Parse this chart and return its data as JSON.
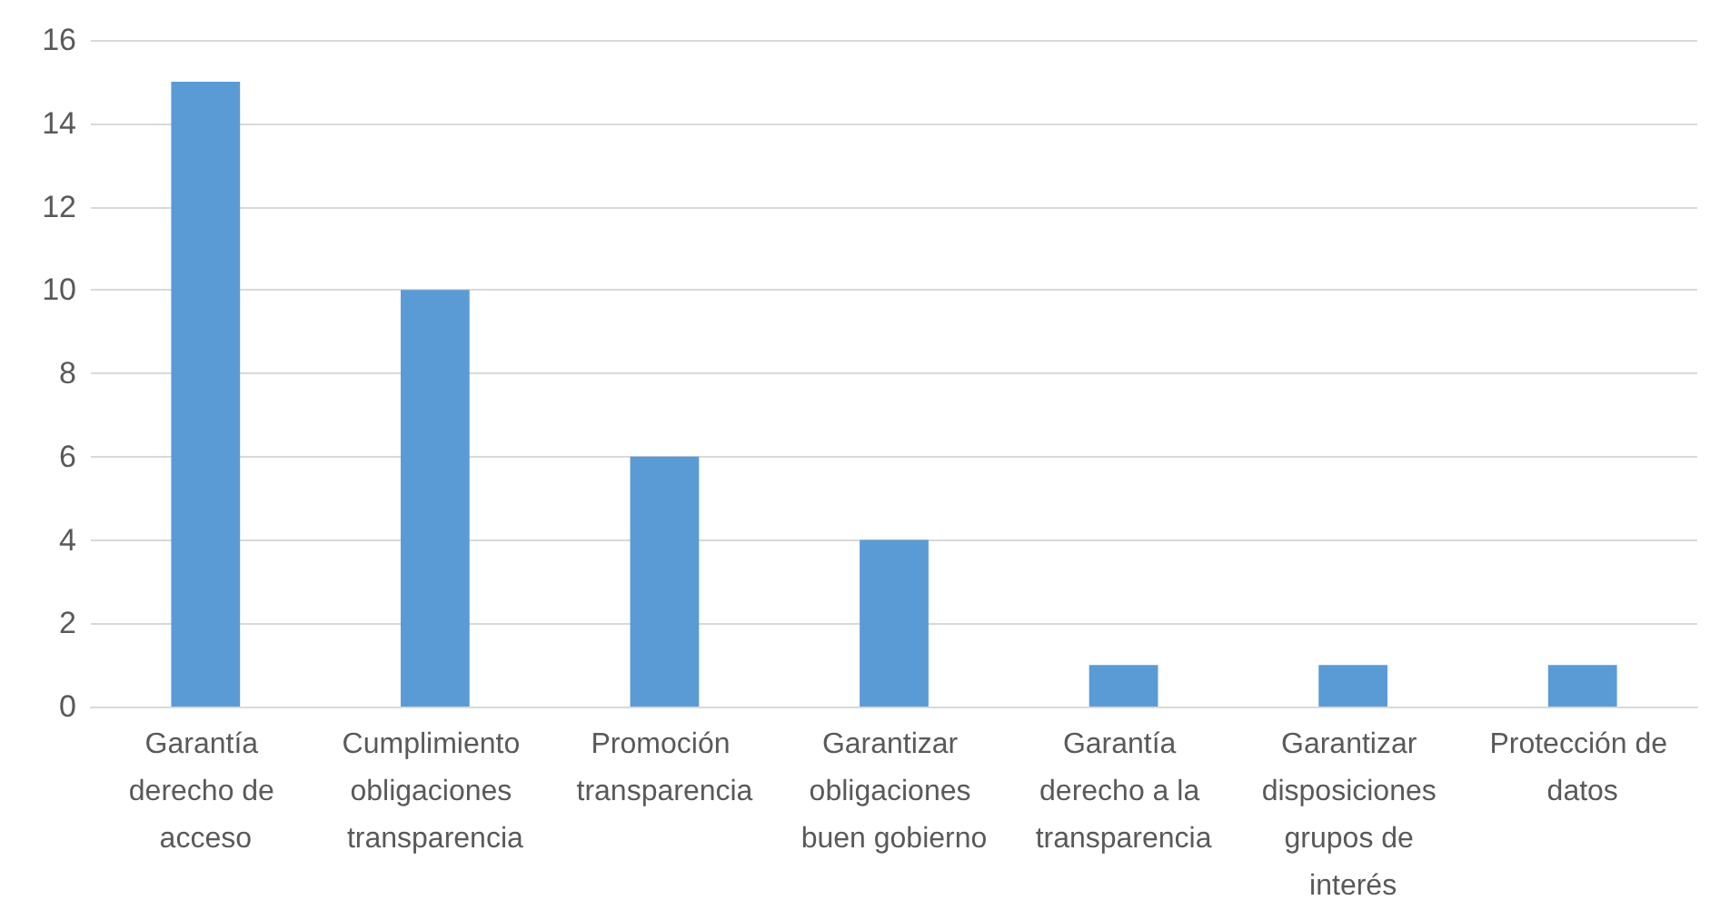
{
  "chart_data": {
    "type": "bar",
    "categories": [
      "Garantía derecho de acceso",
      "Cumplimiento obligaciones transparencia",
      "Promoción transparencia",
      "Garantizar obligaciones buen gobierno",
      "Garantía derecho a la transparencia",
      "Garantizar disposiciones grupos de interés",
      "Protección de datos"
    ],
    "values": [
      15,
      10,
      6,
      4,
      1,
      1,
      1
    ],
    "color": "#5b9bd5",
    "ylim": [
      0,
      16
    ],
    "yticks": [
      0,
      2,
      4,
      6,
      8,
      10,
      12,
      14,
      16
    ],
    "grid": "y"
  }
}
